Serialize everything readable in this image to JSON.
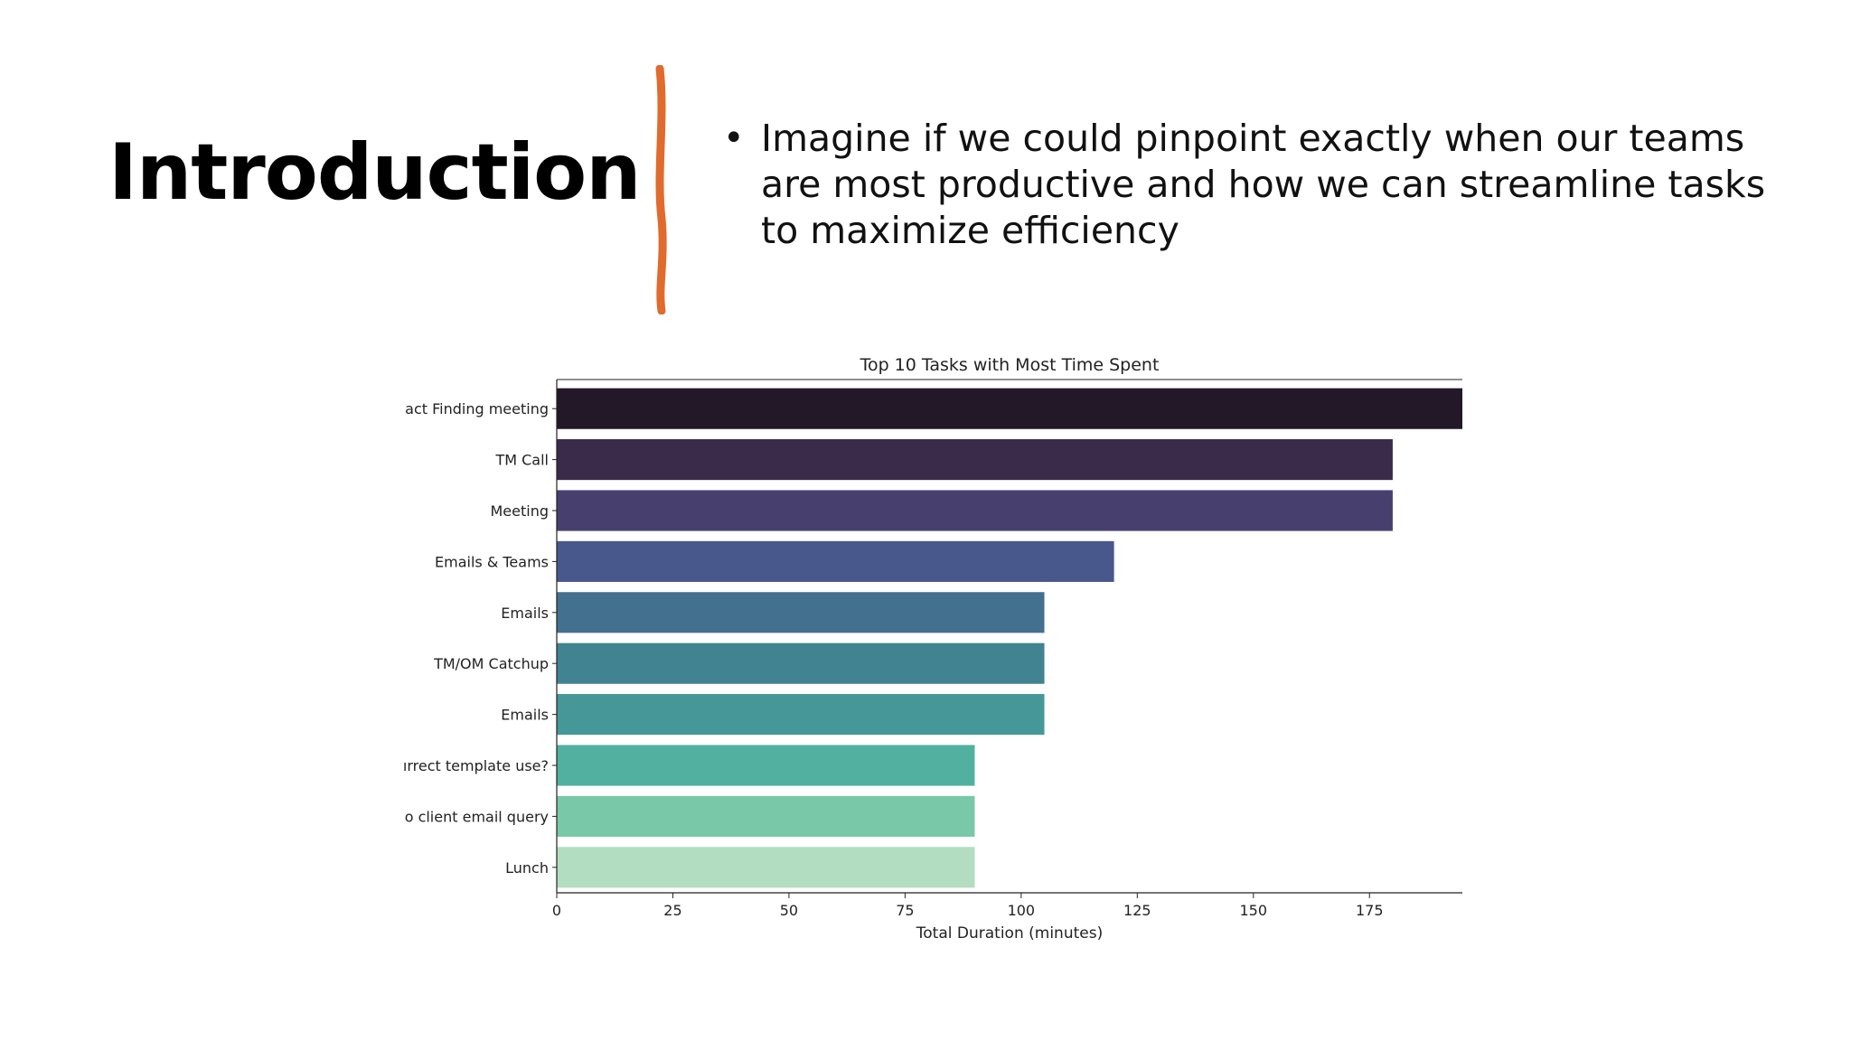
{
  "slide": {
    "title": "Introduction",
    "bullets": [
      "Imagine if we could pinpoint exactly when our teams are most productive and how we can streamline tasks to maximize efficiency"
    ],
    "accent_color": "#e06b2d"
  },
  "chart_data": {
    "type": "bar",
    "orientation": "horizontal",
    "title": "Top 10 Tasks with Most Time Spent",
    "xlabel": "Total Duration (minutes)",
    "ylabel": "",
    "categories": [
      "act Finding meeting",
      "TM Call",
      "Meeting",
      "Emails & Teams",
      "Emails",
      "TM/OM Catchup",
      "Emails",
      "ırrect template use?",
      "o client email query",
      "Lunch"
    ],
    "values": [
      195,
      180,
      180,
      120,
      105,
      105,
      105,
      90,
      90,
      90
    ],
    "colors": [
      "#231828",
      "#3a2b4b",
      "#473f6d",
      "#48578c",
      "#44708f",
      "#418391",
      "#469898",
      "#51b0a0",
      "#79c8a7",
      "#b3ddc0"
    ],
    "xlim": [
      0,
      195
    ],
    "xticks": [
      0,
      25,
      50,
      75,
      100,
      125,
      150,
      175
    ],
    "grid": false,
    "legend": "none"
  }
}
